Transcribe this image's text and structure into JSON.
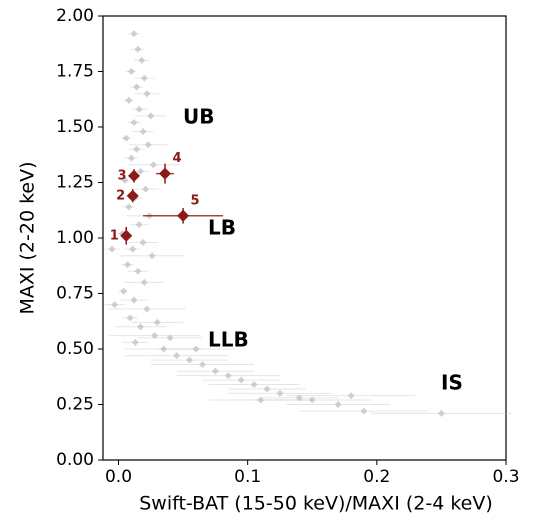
{
  "chart_data": {
    "type": "scatter",
    "xlabel": "Swift-BAT (15-50 keV)/MAXI (2-4 keV)",
    "ylabel": "MAXI (2-20 keV)",
    "xlim": [
      -0.012,
      0.3
    ],
    "ylim": [
      0,
      2
    ],
    "xticks": [
      {
        "value": 0,
        "label": "0.0"
      },
      0.1,
      0.2,
      0.3
    ],
    "yticks": [
      {
        "value": 0,
        "label": "0.00"
      },
      0.25,
      {
        "value": 0.5,
        "label": "0.50"
      },
      0.75,
      {
        "value": 1,
        "label": "1.00"
      },
      1.25,
      {
        "value": 1.5,
        "label": "1.50"
      },
      1.75,
      {
        "value": 2,
        "label": "2.00"
      }
    ],
    "annotations": [
      "UB",
      "LB",
      "LLB",
      "IS"
    ],
    "series": [
      {
        "color": "#c0c0c0",
        "x": [
          0.012,
          0.015,
          0.018,
          0.01,
          0.02,
          0.014,
          0.022,
          0.008,
          0.016,
          0.025,
          0.012,
          0.019,
          0.006,
          0.023,
          0.014,
          0.01,
          0.027,
          0.017,
          0.005,
          0.021,
          0.013,
          0.008,
          0.024,
          0.016,
          0.003,
          0.019,
          0.011,
          0.026,
          0.007,
          0.015,
          0.02,
          0.004,
          0.012,
          0.022,
          0.009,
          0.017,
          0.028,
          0.013,
          0.035,
          0.045,
          0.055,
          0.065,
          0.075,
          0.085,
          0.095,
          0.105,
          0.115,
          0.125,
          0.14,
          0.15,
          0.17,
          0.19,
          0.25,
          -0.005,
          -0.003,
          0.04,
          0.06,
          0.03,
          0.11,
          0.18
        ],
        "values": [
          1.92,
          1.85,
          1.8,
          1.75,
          1.72,
          1.68,
          1.65,
          1.62,
          1.58,
          1.55,
          1.52,
          1.48,
          1.45,
          1.42,
          1.4,
          1.36,
          1.33,
          1.3,
          1.26,
          1.22,
          1.18,
          1.14,
          1.1,
          1.06,
          1.02,
          0.98,
          0.95,
          0.92,
          0.88,
          0.85,
          0.8,
          0.76,
          0.72,
          0.68,
          0.64,
          0.6,
          0.56,
          0.53,
          0.5,
          0.47,
          0.45,
          0.43,
          0.4,
          0.38,
          0.36,
          0.34,
          0.32,
          0.3,
          0.28,
          0.27,
          0.25,
          0.22,
          0.21,
          0.95,
          0.7,
          0.55,
          0.5,
          0.62,
          0.27,
          0.29
        ],
        "xerr": [
          0.004,
          0.005,
          0.006,
          0.004,
          0.008,
          0.005,
          0.01,
          0.004,
          0.006,
          0.012,
          0.005,
          0.008,
          0.004,
          0.015,
          0.006,
          0.005,
          0.02,
          0.007,
          0.004,
          0.01,
          0.006,
          0.005,
          0.018,
          0.007,
          0.004,
          0.012,
          0.006,
          0.025,
          0.005,
          0.008,
          0.015,
          0.004,
          0.01,
          0.03,
          0.006,
          0.02,
          0.035,
          0.01,
          0.03,
          0.04,
          0.03,
          0.04,
          0.03,
          0.04,
          0.03,
          0.035,
          0.03,
          0.04,
          0.03,
          0.045,
          0.04,
          0.05,
          0.055,
          0.006,
          0.008,
          0.025,
          0.03,
          0.02,
          0.04,
          0.05
        ]
      },
      {
        "color": "#8b1a1a",
        "x": [
          0.006,
          0.011,
          0.012,
          0.036,
          0.05
        ],
        "values": [
          1.01,
          1.19,
          1.28,
          1.29,
          1.1
        ],
        "xerr": [
          0.004,
          0.004,
          0.004,
          0.007,
          0.031
        ],
        "yerr": [
          0.04,
          0.03,
          0.03,
          0.045,
          0.035
        ],
        "labels": [
          "1",
          "2",
          "3",
          "4",
          "5"
        ]
      }
    ]
  }
}
